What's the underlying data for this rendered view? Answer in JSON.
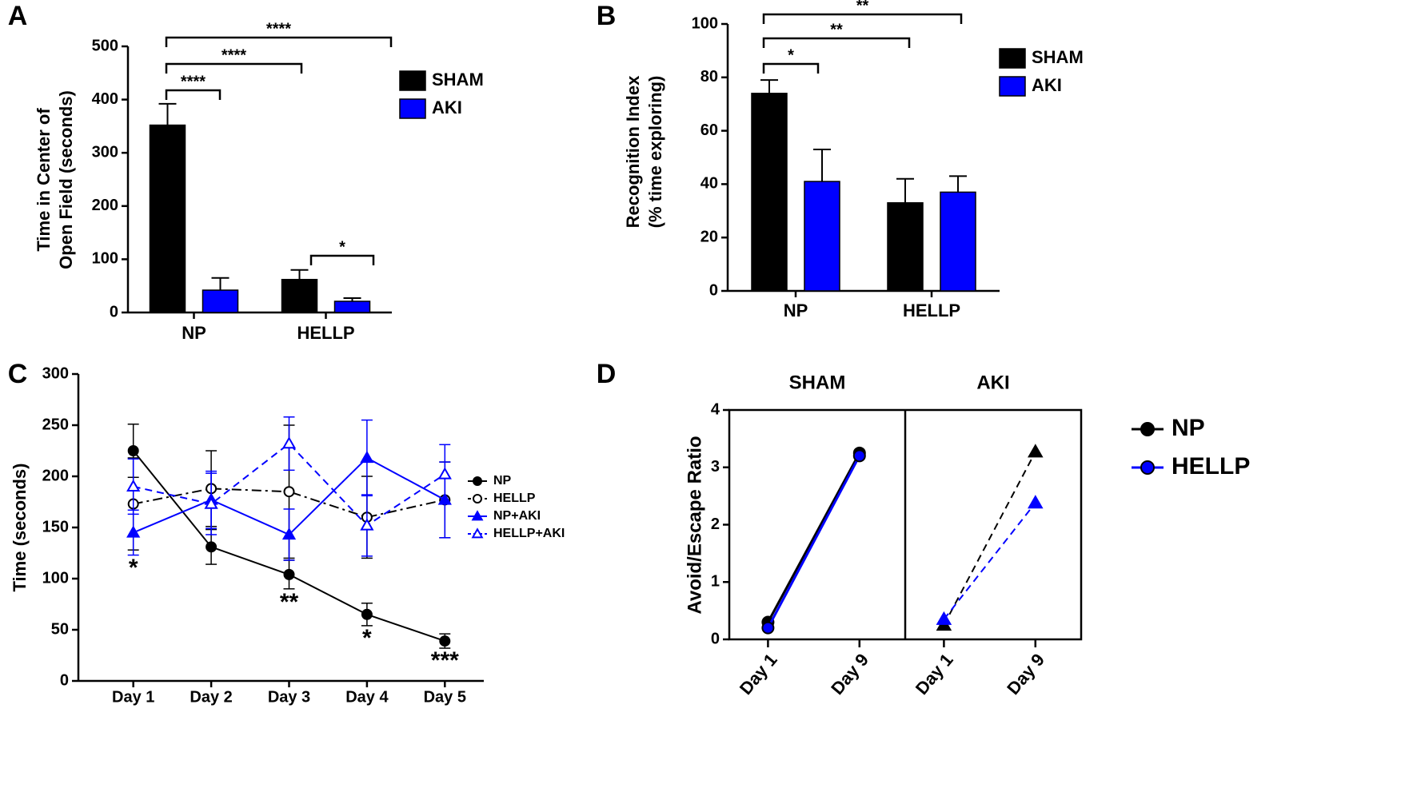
{
  "chart_data": [
    {
      "panel_label": "A",
      "type": "bar",
      "y_label": [
        "Time in Center of",
        "Open Field (seconds)"
      ],
      "categories": [
        "NP",
        "HELLP"
      ],
      "series": [
        {
          "name": "SHAM",
          "color": "#000000",
          "values": [
            352,
            62
          ],
          "errors": [
            40,
            18
          ]
        },
        {
          "name": "AKI",
          "color": "#0000ff",
          "values": [
            42,
            21
          ],
          "errors": [
            23,
            6
          ]
        }
      ],
      "ylim": [
        0,
        500
      ],
      "yticks": [
        0,
        100,
        200,
        300,
        400,
        500
      ],
      "annotations": [
        "****",
        "****",
        "****",
        "*"
      ]
    },
    {
      "panel_label": "B",
      "type": "bar",
      "y_label": [
        "Recognition Index",
        "(% time exploring)"
      ],
      "categories": [
        "NP",
        "HELLP"
      ],
      "series": [
        {
          "name": "SHAM",
          "color": "#000000",
          "values": [
            74,
            33
          ],
          "errors": [
            5,
            9
          ]
        },
        {
          "name": "AKI",
          "color": "#0000ff",
          "values": [
            41,
            37
          ],
          "errors": [
            12,
            6
          ]
        }
      ],
      "ylim": [
        0,
        100
      ],
      "yticks": [
        0,
        20,
        40,
        60,
        80,
        100
      ],
      "annotations": [
        "**",
        "**",
        "*"
      ]
    },
    {
      "panel_label": "C",
      "type": "line",
      "y_label": [
        "Time (seconds)"
      ],
      "categories": [
        "Day 1",
        "Day 2",
        "Day 3",
        "Day 4",
        "Day 5"
      ],
      "series": [
        {
          "name": "NP",
          "color": "#000000",
          "dash": "solid",
          "marker": "circle",
          "filled": true,
          "values": [
            225,
            131,
            104,
            65,
            39
          ],
          "errors": [
            26,
            17,
            14,
            11,
            7
          ]
        },
        {
          "name": "HELLP",
          "color": "#000000",
          "dash": "dash-dot",
          "marker": "circle",
          "filled": false,
          "values": [
            173,
            188,
            185,
            160,
            177
          ],
          "errors": [
            45,
            37,
            65,
            40,
            37
          ]
        },
        {
          "name": "NP+AKI",
          "color": "#0000ff",
          "dash": "solid",
          "marker": "triangle",
          "filled": true,
          "values": [
            145,
            177,
            143,
            218,
            177
          ],
          "errors": [
            22,
            28,
            25,
            37,
            37
          ]
        },
        {
          "name": "HELLP+AKI",
          "color": "#0000ff",
          "dash": "dashed",
          "marker": "triangle",
          "filled": false,
          "values": [
            190,
            173,
            232,
            152,
            202
          ],
          "errors": [
            27,
            30,
            26,
            30,
            29
          ]
        }
      ],
      "ylim": [
        0,
        300
      ],
      "yticks": [
        0,
        50,
        100,
        150,
        200,
        250,
        300
      ],
      "annotations": [
        "*",
        "**",
        "*",
        "***"
      ],
      "legend": "right"
    },
    {
      "panel_label": "D",
      "type": "facet-line",
      "y_label": [
        "Avoid/Escape Ratio"
      ],
      "facets": [
        "SHAM",
        "AKI"
      ],
      "facet_dash": [
        "solid",
        "dashed"
      ],
      "facet_marker": [
        "circle",
        "triangle"
      ],
      "categories": [
        "Day 1",
        "Day 9"
      ],
      "series": [
        {
          "name": "NP",
          "color": "#000000",
          "values": [
            [
              0.3,
              3.25
            ],
            [
              0.25,
              3.27
            ]
          ]
        },
        {
          "name": "HELLP",
          "color": "#0000ff",
          "values": [
            [
              0.2,
              3.2
            ],
            [
              0.35,
              2.38
            ]
          ]
        }
      ],
      "ylim": [
        0,
        4
      ],
      "yticks": [
        0,
        1,
        2,
        3,
        4
      ],
      "legend": "right"
    }
  ]
}
